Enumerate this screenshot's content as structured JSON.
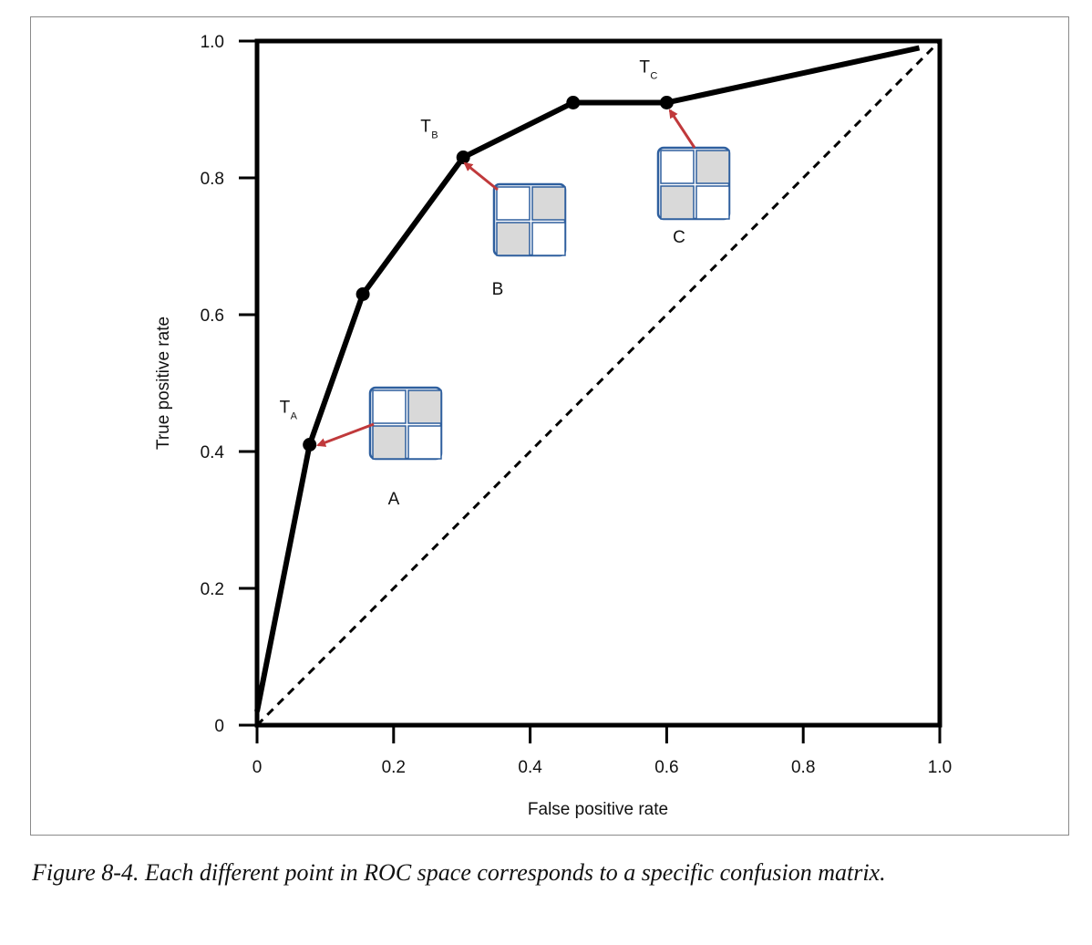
{
  "chart_data": {
    "type": "line",
    "title": "",
    "xlabel": "False positive rate",
    "ylabel": "True positive rate",
    "xlim": [
      0,
      1.0
    ],
    "ylim": [
      0,
      1.0
    ],
    "x_ticks": [
      0,
      0.2,
      0.4,
      0.6,
      0.8,
      1.0
    ],
    "x_tick_labels": [
      "0",
      "0.2",
      "0.4",
      "0.6",
      "0.8",
      "1.0"
    ],
    "y_ticks": [
      0,
      0.2,
      0.4,
      0.6,
      0.8,
      1.0
    ],
    "y_tick_labels": [
      "0",
      "0.2",
      "0.4",
      "0.6",
      "0.8",
      "1.0"
    ],
    "grid": false,
    "series": [
      {
        "style": "solid",
        "color": "#000000",
        "x": [
          0,
          0.077,
          0.155,
          0.302,
          0.463,
          0.6,
          0.97
        ],
        "y": [
          0.02,
          0.41,
          0.63,
          0.83,
          0.91,
          0.91,
          0.99
        ],
        "marked_points": [
          1,
          2,
          3,
          4,
          5
        ]
      },
      {
        "style": "dashed",
        "color": "#000000",
        "x": [
          0,
          1.0
        ],
        "y": [
          0,
          1.0
        ]
      }
    ],
    "point_labels": [
      {
        "main": "T",
        "sub": "A",
        "x": 0.077,
        "y": 0.41
      },
      {
        "main": "T",
        "sub": "B",
        "x": 0.302,
        "y": 0.83
      },
      {
        "main": "T",
        "sub": "C",
        "x": 0.6,
        "y": 0.91
      }
    ],
    "matrices": [
      {
        "label": "A",
        "shaded_cells": [
          1,
          2
        ],
        "points_to": 0
      },
      {
        "label": "B",
        "shaded_cells": [
          1,
          2
        ],
        "points_to": 1
      },
      {
        "label": "C",
        "shaded_cells": [
          1,
          2
        ],
        "points_to": 2
      }
    ],
    "colors": {
      "arrow": "#c0393b",
      "matrix_border": "#2e5f9e",
      "matrix_shade": "#d9d9d9"
    }
  },
  "caption": "Figure 8-4. Each different point in ROC space corresponds to a specific confusion matrix."
}
